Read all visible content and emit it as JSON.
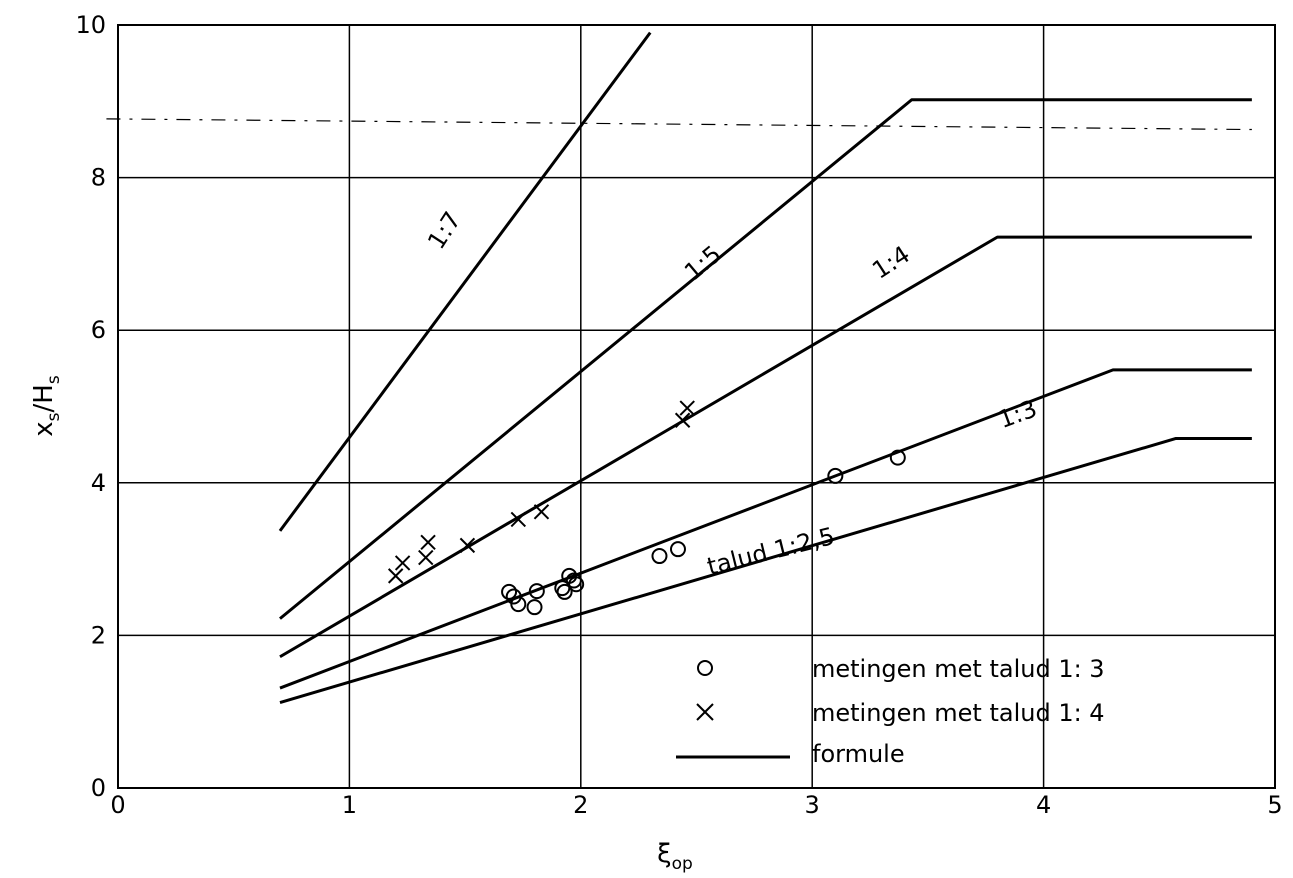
{
  "chart_data": {
    "type": "line",
    "xlabel": "ξ",
    "xlabel_sub": "op",
    "ylabel": "x",
    "ylabel_sub1": "s",
    "ylabel_mid": "/H",
    "ylabel_sub2": "s",
    "xlim": [
      0,
      5
    ],
    "ylim": [
      0,
      10
    ],
    "xticks": [
      "0",
      "1",
      "2",
      "3",
      "4",
      "5"
    ],
    "yticks": [
      "0",
      "2",
      "4",
      "6",
      "8",
      "10"
    ],
    "grid": true,
    "legend_position": "bottom-right",
    "series": [
      {
        "name": "1:7",
        "x": [
          0.7,
          2.3
        ],
        "y": [
          3.37,
          9.9
        ]
      },
      {
        "name": "1:5",
        "x": [
          0.7,
          3.43,
          4.9
        ],
        "y": [
          2.22,
          9.02,
          9.02
        ]
      },
      {
        "name": "1:4",
        "x": [
          0.7,
          3.8,
          4.9
        ],
        "y": [
          1.72,
          7.22,
          7.22
        ]
      },
      {
        "name": "1:3",
        "x": [
          0.7,
          4.3,
          4.9
        ],
        "y": [
          1.31,
          5.48,
          5.48
        ]
      },
      {
        "name": "talud 1:2,5",
        "x": [
          0.7,
          4.57,
          4.9
        ],
        "y": [
          1.12,
          4.58,
          4.58
        ]
      }
    ],
    "line_labels": [
      {
        "text": "1:7",
        "x": 1.44,
        "y": 7.25,
        "angle": -57
      },
      {
        "text": "1:5",
        "x": 2.55,
        "y": 6.8,
        "angle": -40
      },
      {
        "text": "1:4",
        "x": 3.36,
        "y": 6.8,
        "angle": -33
      },
      {
        "text": "1:3",
        "x": 3.9,
        "y": 4.8,
        "angle": -20
      },
      {
        "text": "talud 1:2,5",
        "x": 2.83,
        "y": 3.0,
        "angle": -14
      }
    ],
    "dashed_reference": {
      "x": [
        -0.05,
        4.9
      ],
      "y": [
        8.77,
        8.63
      ]
    },
    "measurements_1_3": {
      "label": "metingen met talud 1: 3",
      "x": [
        1.69,
        1.71,
        1.73,
        1.8,
        1.81,
        1.92,
        1.93,
        1.95,
        1.97,
        1.98,
        2.34,
        2.42,
        3.1,
        3.37
      ],
      "y": [
        2.57,
        2.51,
        2.41,
        2.37,
        2.58,
        2.62,
        2.57,
        2.78,
        2.72,
        2.67,
        3.04,
        3.13,
        4.09,
        4.33
      ]
    },
    "measurements_1_4": {
      "label": "metingen met talud 1: 4",
      "x": [
        1.2,
        1.23,
        1.33,
        1.34,
        1.51,
        1.73,
        1.83,
        2.44,
        2.46
      ],
      "y": [
        2.78,
        2.95,
        3.02,
        3.22,
        3.18,
        3.52,
        3.62,
        4.82,
        4.98
      ]
    },
    "legend": [
      {
        "marker": "circle",
        "label": "metingen met talud 1: 3"
      },
      {
        "marker": "cross",
        "label": "metingen met talud 1: 4"
      },
      {
        "marker": "line",
        "label": "formule"
      }
    ]
  }
}
